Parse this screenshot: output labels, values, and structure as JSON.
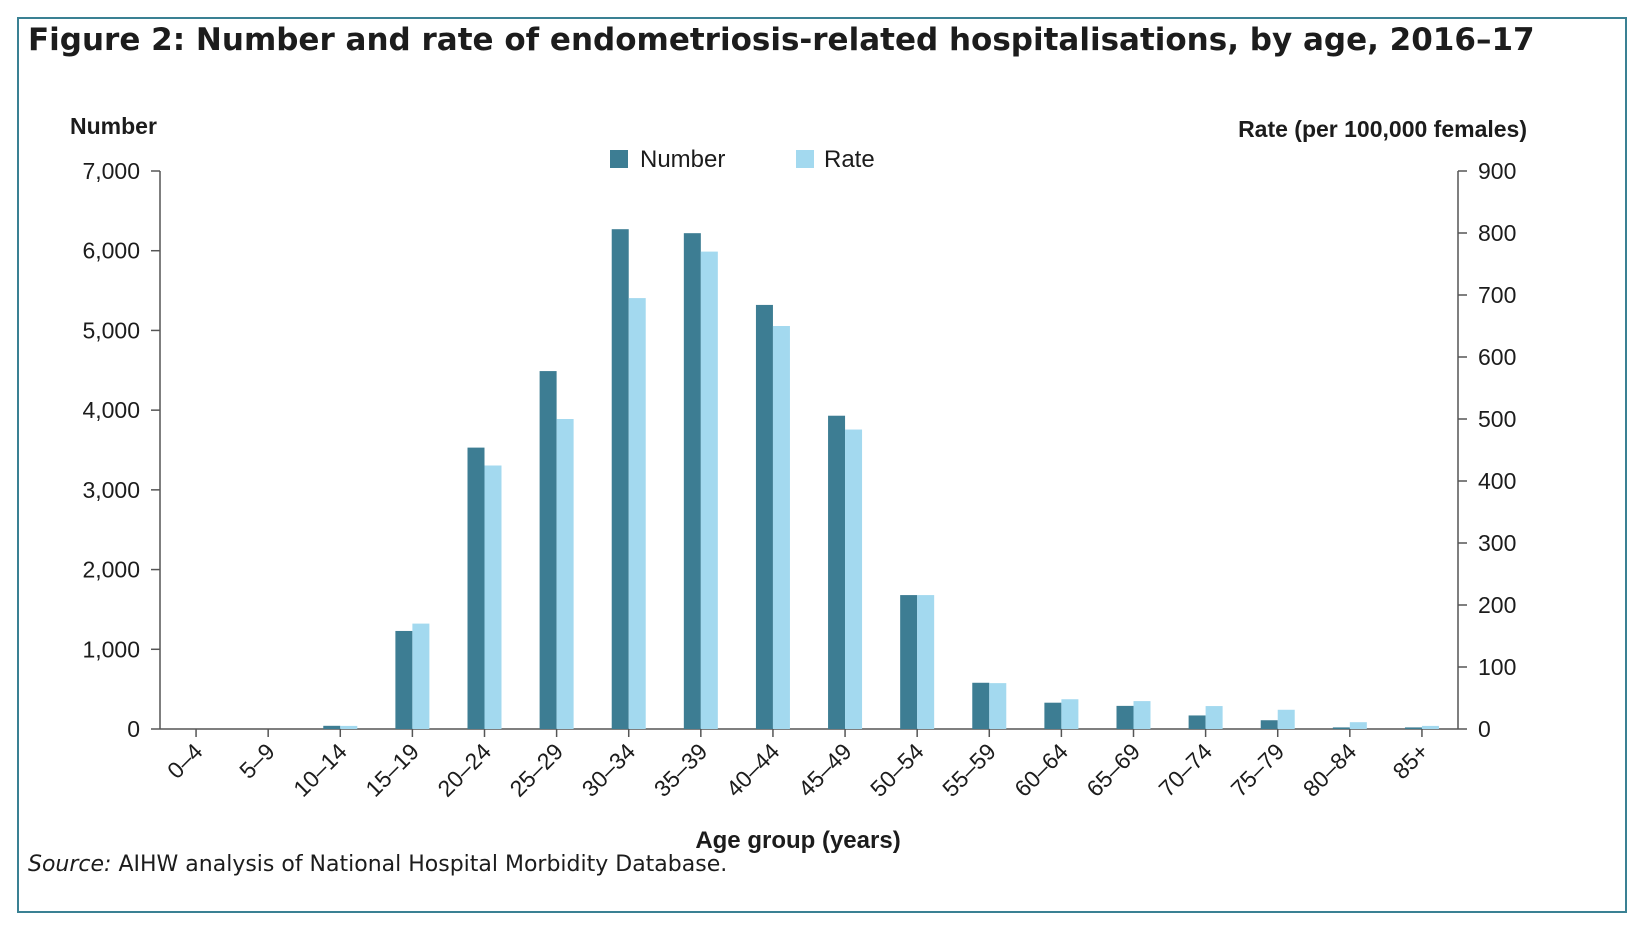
{
  "figure": {
    "title": "Figure 2: Number and rate of endometriosis-related hospitalisations, by age, 2016–17",
    "source_label": "Source:",
    "source_text": "AIHW analysis of National Hospital Morbidity Database."
  },
  "colors": {
    "number": "#3d7d93",
    "rate": "#a3d9ef",
    "frame": "#3a8193",
    "axis": "#555555"
  },
  "chart_data": {
    "type": "bar",
    "xlabel": "Age group (years)",
    "ylabel_left": "Number",
    "ylabel_right": "Rate (per 100,000 females)",
    "categories": [
      "0–4",
      "5–9",
      "10–14",
      "15–19",
      "20–24",
      "25–29",
      "30–34",
      "35–39",
      "40–44",
      "45–49",
      "50–54",
      "55–59",
      "60–64",
      "65–69",
      "70–74",
      "75–79",
      "80–84",
      "85+"
    ],
    "series": [
      {
        "name": "Number",
        "axis": "left",
        "values": [
          0,
          0,
          40,
          1230,
          3530,
          4490,
          6270,
          6220,
          5320,
          3930,
          1680,
          580,
          330,
          290,
          170,
          110,
          20,
          20
        ]
      },
      {
        "name": "Rate",
        "axis": "right",
        "values": [
          0,
          0,
          5,
          170,
          425,
          500,
          695,
          770,
          650,
          483,
          216,
          74,
          48,
          45,
          37,
          31,
          11,
          5
        ]
      }
    ],
    "ylim_left": [
      0,
      7000
    ],
    "yticks_left": [
      0,
      1000,
      2000,
      3000,
      4000,
      5000,
      6000,
      7000
    ],
    "yticklabels_left": [
      "0",
      "1,000",
      "2,000",
      "3,000",
      "4,000",
      "5,000",
      "6,000",
      "7,000"
    ],
    "ylim_right": [
      0,
      900
    ],
    "yticks_right": [
      0,
      100,
      200,
      300,
      400,
      500,
      600,
      700,
      800,
      900
    ],
    "yticklabels_right": [
      "0",
      "100",
      "200",
      "300",
      "400",
      "500",
      "600",
      "700",
      "800",
      "900"
    ],
    "legend_position": "top-center",
    "grid": false
  }
}
